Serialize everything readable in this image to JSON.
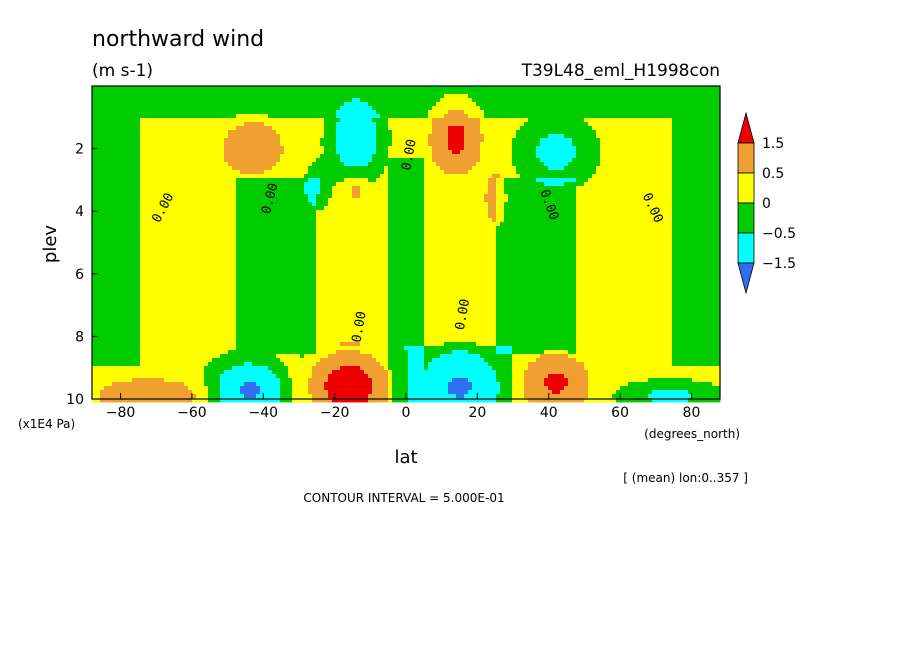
{
  "chart_data": {
    "type": "heatmap",
    "title": "northward wind",
    "units": "(m s-1)",
    "run_name": "T39L48_eml_H1998con",
    "xlabel": "lat",
    "x_units": "(degrees_north)",
    "ylabel": "plev",
    "y_units": "(x1E4 Pa)",
    "xlim": [
      -88,
      88
    ],
    "ylim": [
      10,
      0
    ],
    "x_ticks": [
      {
        "v": -80,
        "label": "−80"
      },
      {
        "v": -60,
        "label": "−60"
      },
      {
        "v": -40,
        "label": "−40"
      },
      {
        "v": -20,
        "label": "−20"
      },
      {
        "v": 0,
        "label": "0"
      },
      {
        "v": 20,
        "label": "20"
      },
      {
        "v": 40,
        "label": "40"
      },
      {
        "v": 60,
        "label": "60"
      },
      {
        "v": 80,
        "label": "80"
      }
    ],
    "y_ticks": [
      {
        "v": 2,
        "label": "2"
      },
      {
        "v": 4,
        "label": "4"
      },
      {
        "v": 6,
        "label": "6"
      },
      {
        "v": 8,
        "label": "8"
      },
      {
        "v": 10,
        "label": "10"
      }
    ],
    "levels": [
      -1.5,
      -1.0,
      -0.5,
      0,
      0.5,
      1.0,
      1.5
    ],
    "colorbar_labels": [
      "1.5",
      "0.5",
      "0",
      "−0.5",
      "−1.5"
    ],
    "colors": {
      "lt_neg15": "#2f6ff0",
      "neg15_neg05": "#00ffff",
      "neg05_0": "#00cc00",
      "0_05": "#ffff00",
      "05_15": "#f0a030",
      "gt_15": "#ee0000"
    },
    "contour_labels": [
      {
        "text": "0.00",
        "lat": -68,
        "plev": 3.9,
        "rot": -62
      },
      {
        "text": "0.00",
        "lat": -38,
        "plev": 3.6,
        "rot": -75
      },
      {
        "text": "0.00",
        "lat": -13,
        "plev": 7.7,
        "rot": -80
      },
      {
        "text": "0.00",
        "lat": 1,
        "plev": 2.2,
        "rot": -80
      },
      {
        "text": "0.00",
        "lat": 16,
        "plev": 7.3,
        "rot": -80
      },
      {
        "text": "0.00",
        "lat": 40,
        "plev": 3.8,
        "rot": 70
      },
      {
        "text": "0.00",
        "lat": 69,
        "plev": 3.9,
        "rot": 65
      }
    ],
    "features": [
      {
        "lat": -43,
        "plev": 2.0,
        "value": 0.9,
        "rlat": 9,
        "rplev": 0.9
      },
      {
        "lat": -14,
        "plev": 1.7,
        "value": -1.6,
        "rlat": 6,
        "rplev": 1.0
      },
      {
        "lat": -25,
        "plev": 3.2,
        "value": -0.7,
        "rlat": 3,
        "rplev": 0.6
      },
      {
        "lat": -14,
        "plev": 3.3,
        "value": 0.6,
        "rlat": 2.5,
        "rplev": 0.5
      },
      {
        "lat": 14,
        "plev": 1.7,
        "value": 1.7,
        "rlat": 6,
        "rplev": 1.0
      },
      {
        "lat": 25,
        "plev": 3.6,
        "value": 0.8,
        "rlat": 3,
        "rplev": 0.9
      },
      {
        "lat": 14,
        "plev": 3.1,
        "value": -0.3,
        "rlat": 2.5,
        "rplev": 0.5
      },
      {
        "lat": 42,
        "plev": 2.1,
        "value": -0.9,
        "rlat": 9,
        "rplev": 0.9
      },
      {
        "lat": -72,
        "plev": 9.9,
        "value": 1.2,
        "rlat": 13,
        "rplev": 0.5
      },
      {
        "lat": -44,
        "plev": 9.7,
        "value": -1.8,
        "rlat": 9,
        "rplev": 0.8
      },
      {
        "lat": -16,
        "plev": 9.6,
        "value": 2.6,
        "rlat": 10,
        "rplev": 1.0
      },
      {
        "lat": 15,
        "plev": 9.6,
        "value": -1.5,
        "rlat": 9,
        "rplev": 0.9
      },
      {
        "lat": 42,
        "plev": 9.5,
        "value": 1.6,
        "rlat": 8,
        "rplev": 0.8
      },
      {
        "lat": 74,
        "plev": 9.9,
        "value": -0.8,
        "rlat": 12,
        "rplev": 0.4
      }
    ],
    "footnote": "[ (mean) lon:0..357 ]",
    "contour_interval": "CONTOUR INTERVAL = 5.000E-01"
  }
}
